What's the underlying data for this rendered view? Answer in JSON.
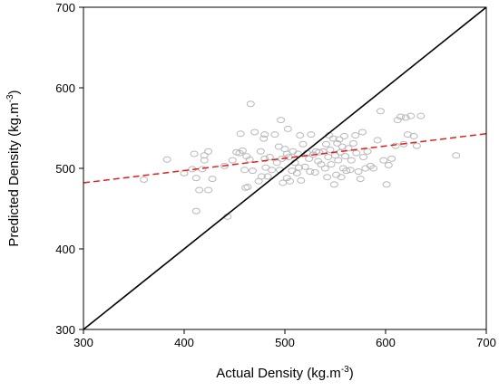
{
  "chart_data": {
    "type": "scatter",
    "xlabel": "Actual Density (kg.m",
    "xlabel_sup": "-3",
    "xlabel_close": ")",
    "ylabel": "Predicted Density (kg.m",
    "ylabel_sup": "-3",
    "ylabel_close": ")",
    "xlim": [
      300,
      700
    ],
    "ylim": [
      300,
      700
    ],
    "x_ticks": [
      "300",
      "400",
      "500",
      "600",
      "700"
    ],
    "y_ticks": [
      "300",
      "400",
      "500",
      "600",
      "700"
    ],
    "grid": false,
    "colors": {
      "points": "#b8b8b8",
      "identity_line": "#000000",
      "fit_line": "#e0201b"
    },
    "identity_line": {
      "x": [
        300,
        700
      ],
      "y": [
        300,
        700
      ]
    },
    "fit_line": {
      "x": [
        300,
        700
      ],
      "y": [
        482,
        543
      ]
    },
    "points": [
      [
        360,
        486
      ],
      [
        383,
        511
      ],
      [
        400,
        494
      ],
      [
        408,
        499
      ],
      [
        410,
        518
      ],
      [
        412,
        447
      ],
      [
        412,
        488
      ],
      [
        415,
        473
      ],
      [
        418,
        499
      ],
      [
        420,
        510
      ],
      [
        420,
        516
      ],
      [
        424,
        521
      ],
      [
        424,
        473
      ],
      [
        428,
        487
      ],
      [
        440,
        503
      ],
      [
        443,
        440
      ],
      [
        448,
        510
      ],
      [
        452,
        520
      ],
      [
        455,
        519
      ],
      [
        456,
        543
      ],
      [
        458,
        522
      ],
      [
        460,
        498
      ],
      [
        461,
        476
      ],
      [
        462,
        515
      ],
      [
        463,
        477
      ],
      [
        465,
        511
      ],
      [
        466,
        580
      ],
      [
        468,
        497
      ],
      [
        470,
        545
      ],
      [
        474,
        484
      ],
      [
        476,
        521
      ],
      [
        477,
        490
      ],
      [
        479,
        537
      ],
      [
        480,
        542
      ],
      [
        480,
        512
      ],
      [
        481,
        501
      ],
      [
        483,
        490
      ],
      [
        485,
        514
      ],
      [
        487,
        498
      ],
      [
        490,
        542
      ],
      [
        492,
        507
      ],
      [
        494,
        527
      ],
      [
        495,
        498
      ],
      [
        496,
        560
      ],
      [
        497,
        512
      ],
      [
        498,
        482
      ],
      [
        500,
        524
      ],
      [
        502,
        518
      ],
      [
        502,
        488
      ],
      [
        503,
        549
      ],
      [
        504,
        514
      ],
      [
        505,
        484
      ],
      [
        507,
        497
      ],
      [
        508,
        521
      ],
      [
        510,
        507
      ],
      [
        512,
        494
      ],
      [
        513,
        518
      ],
      [
        514,
        501
      ],
      [
        515,
        541
      ],
      [
        516,
        485
      ],
      [
        518,
        530
      ],
      [
        520,
        502
      ],
      [
        522,
        519
      ],
      [
        524,
        512
      ],
      [
        525,
        496
      ],
      [
        526,
        542
      ],
      [
        528,
        517
      ],
      [
        530,
        495
      ],
      [
        531,
        521
      ],
      [
        533,
        509
      ],
      [
        534,
        520
      ],
      [
        536,
        505
      ],
      [
        538,
        521
      ],
      [
        540,
        500
      ],
      [
        541,
        530
      ],
      [
        542,
        489
      ],
      [
        543,
        514
      ],
      [
        544,
        541
      ],
      [
        545,
        523
      ],
      [
        546,
        505
      ],
      [
        548,
        537
      ],
      [
        549,
        480
      ],
      [
        550,
        516
      ],
      [
        551,
        492
      ],
      [
        552,
        531
      ],
      [
        553,
        510
      ],
      [
        554,
        536
      ],
      [
        555,
        520
      ],
      [
        556,
        489
      ],
      [
        557,
        527
      ],
      [
        558,
        500
      ],
      [
        559,
        540
      ],
      [
        560,
        515
      ],
      [
        561,
        497
      ],
      [
        563,
        525
      ],
      [
        565,
        498
      ],
      [
        566,
        510
      ],
      [
        568,
        531
      ],
      [
        570,
        541
      ],
      [
        571,
        519
      ],
      [
        573,
        496
      ],
      [
        575,
        487
      ],
      [
        577,
        545
      ],
      [
        578,
        514
      ],
      [
        580,
        500
      ],
      [
        582,
        521
      ],
      [
        585,
        503
      ],
      [
        588,
        500
      ],
      [
        592,
        535
      ],
      [
        595,
        571
      ],
      [
        598,
        510
      ],
      [
        601,
        480
      ],
      [
        603,
        504
      ],
      [
        606,
        512
      ],
      [
        610,
        528
      ],
      [
        612,
        560
      ],
      [
        615,
        564
      ],
      [
        618,
        530
      ],
      [
        620,
        563
      ],
      [
        622,
        542
      ],
      [
        625,
        565
      ],
      [
        628,
        540
      ],
      [
        631,
        528
      ],
      [
        635,
        565
      ],
      [
        670,
        516
      ]
    ]
  }
}
